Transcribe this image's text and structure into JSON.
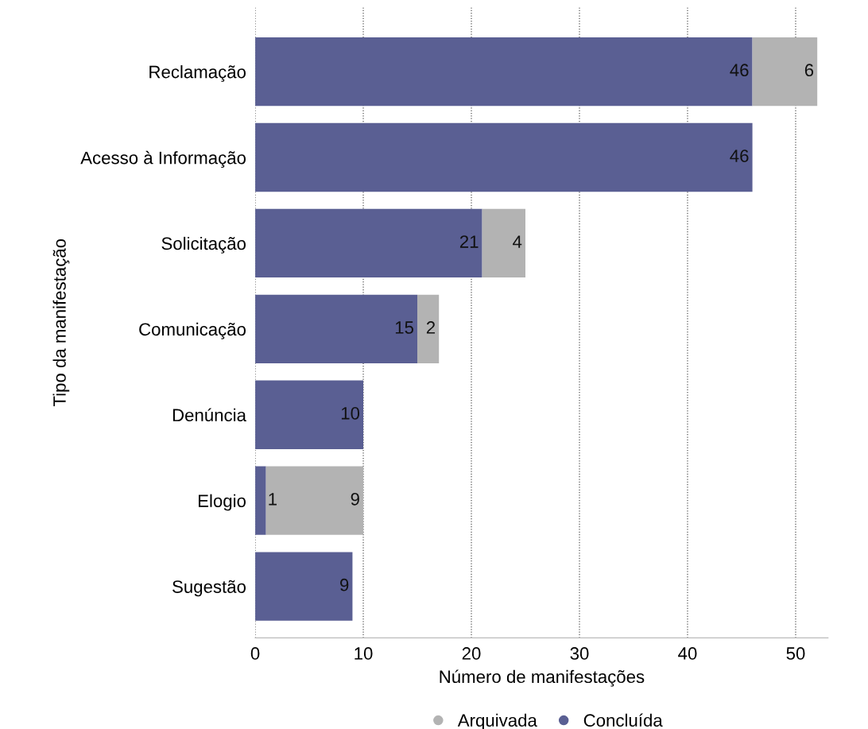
{
  "chart_data": {
    "type": "bar",
    "orientation": "horizontal",
    "stacked": true,
    "categories": [
      "Reclamação",
      "Acesso à Informação",
      "Solicitação",
      "Comunicação",
      "Denúncia",
      "Elogio",
      "Sugestão"
    ],
    "series": [
      {
        "name": "Concluída",
        "color": "#5a5f93",
        "values": [
          46,
          46,
          21,
          15,
          10,
          1,
          9
        ]
      },
      {
        "name": "Arquivada",
        "color": "#b3b3b3",
        "values": [
          6,
          null,
          4,
          2,
          null,
          9,
          null
        ]
      }
    ],
    "xlabel": "Número de manifestações",
    "ylabel": "Tipo da manifestação",
    "xlim": [
      0,
      53
    ],
    "xticks": [
      0,
      10,
      20,
      30,
      40,
      50
    ],
    "grid": "x",
    "legend": "bottom",
    "marker": "circle",
    "data_labels": true
  }
}
